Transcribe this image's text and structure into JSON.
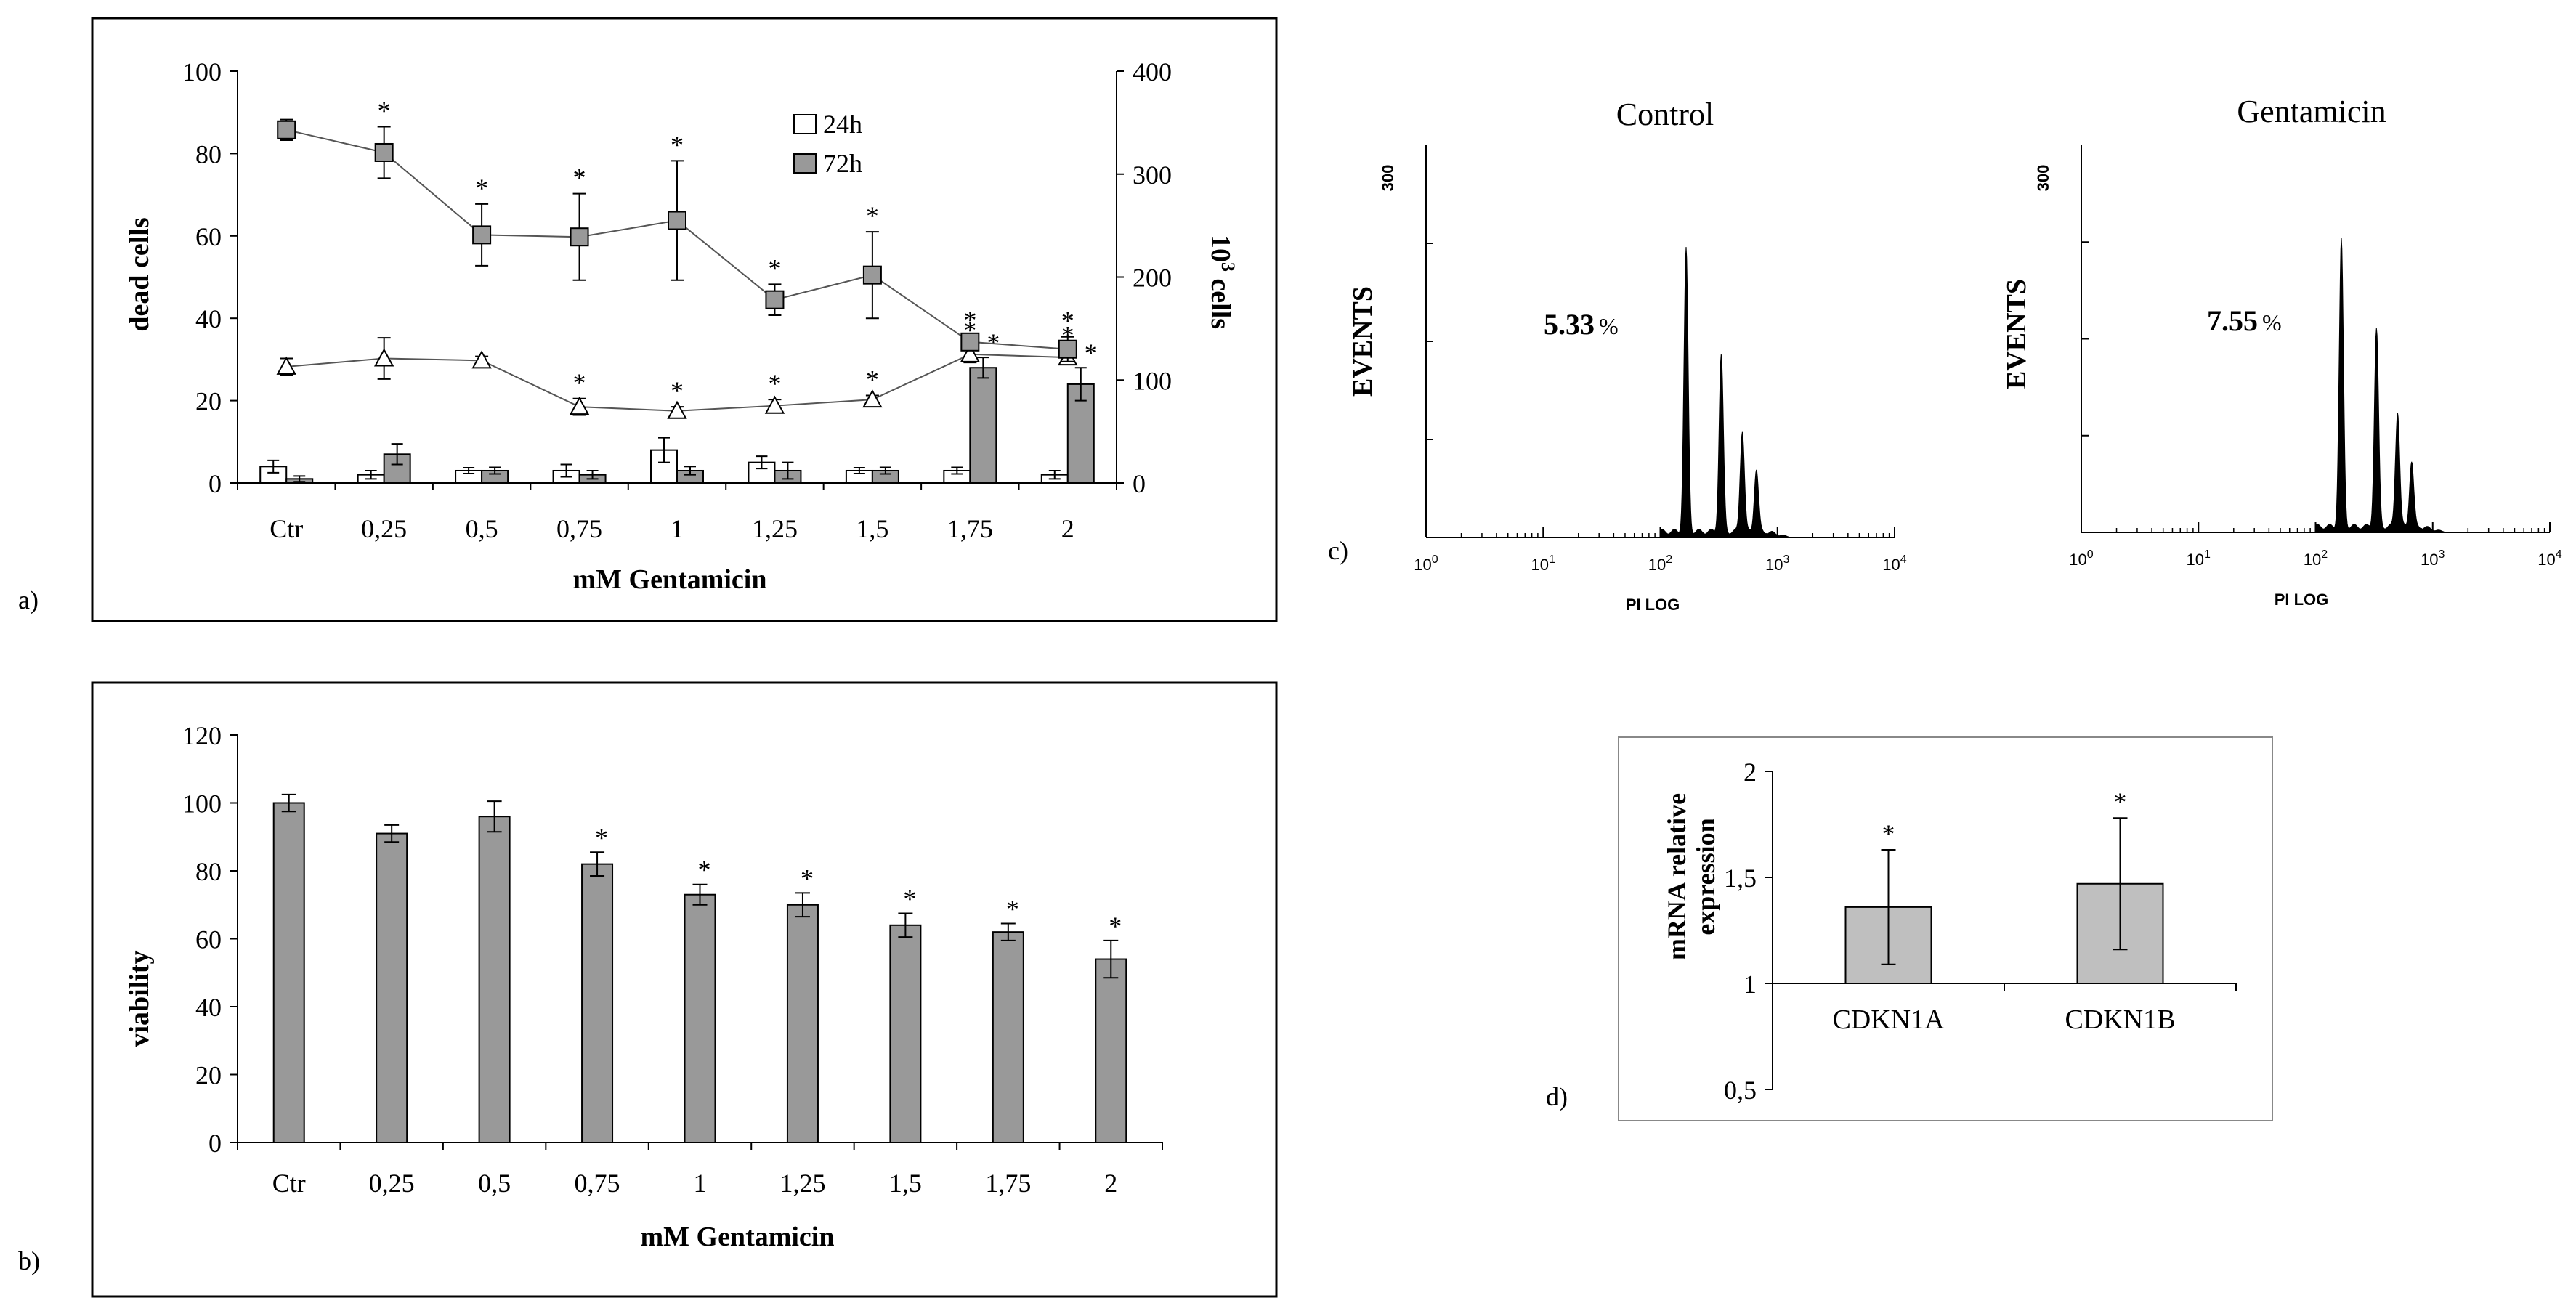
{
  "panel_labels": {
    "a": "a)",
    "b": "b)",
    "c": "c)",
    "d": "d)"
  },
  "chart_data": [
    {
      "id": "a",
      "type": "bar",
      "xlabel": "mM Gentamicin",
      "ylabel": "dead cells",
      "y2label_main": "10",
      "y2label_sup": "3",
      "y2label_rest": " cells",
      "categories": [
        "Ctr",
        "0,25",
        "0,5",
        "0,75",
        "1",
        "1,25",
        "1,5",
        "1,75",
        "2"
      ],
      "ylim": [
        0,
        100
      ],
      "yticks": [
        0,
        20,
        40,
        60,
        80,
        100
      ],
      "y2lim": [
        0,
        400
      ],
      "y2ticks": [
        0,
        100,
        200,
        300,
        400
      ],
      "legend": [
        "24h",
        "72h"
      ],
      "bar_series": [
        {
          "name": "24h",
          "values": [
            4,
            2,
            3,
            3,
            8,
            5,
            3,
            3,
            2
          ],
          "errors": [
            1.5,
            1,
            0.7,
            1.5,
            3,
            1.5,
            0.7,
            0.8,
            1
          ],
          "sig": [
            false,
            false,
            false,
            false,
            false,
            false,
            false,
            false,
            false
          ]
        },
        {
          "name": "72h",
          "values": [
            1,
            7,
            3,
            2,
            3,
            3,
            3,
            28,
            24
          ],
          "errors": [
            0.7,
            2.5,
            0.8,
            1,
            1,
            2,
            0.8,
            2.5,
            4
          ],
          "sig": [
            false,
            false,
            false,
            false,
            false,
            false,
            false,
            true,
            true
          ]
        }
      ],
      "line_series": [
        {
          "name": "24h",
          "marker": "triangle",
          "values": [
            113,
            121,
            119,
            74,
            70,
            75,
            81,
            125,
            122
          ],
          "errors": [
            8,
            20,
            4,
            8,
            4,
            6,
            4,
            8,
            6
          ],
          "sig": [
            false,
            false,
            false,
            true,
            true,
            true,
            true,
            true,
            true
          ]
        },
        {
          "name": "72h",
          "marker": "square",
          "values": [
            343,
            321,
            241,
            239,
            255,
            178,
            202,
            137,
            130
          ],
          "errors": [
            10,
            25,
            30,
            42,
            58,
            15,
            42,
            6,
            12
          ],
          "sig": [
            false,
            true,
            true,
            true,
            true,
            true,
            true,
            true,
            true
          ]
        }
      ]
    },
    {
      "id": "b",
      "type": "bar",
      "xlabel": "mM Gentamicin",
      "ylabel": "viability",
      "categories": [
        "Ctr",
        "0,25",
        "0,5",
        "0,75",
        "1",
        "1,25",
        "1,5",
        "1,75",
        "2"
      ],
      "ylim": [
        0,
        120
      ],
      "yticks": [
        0,
        20,
        40,
        60,
        80,
        100,
        120
      ],
      "values": [
        100,
        91,
        96,
        82,
        73,
        70,
        64,
        62,
        54
      ],
      "errors": [
        2.5,
        2.5,
        4.5,
        3.5,
        3,
        3.5,
        3.5,
        2.5,
        5.5
      ],
      "sig": [
        false,
        false,
        false,
        true,
        true,
        true,
        true,
        true,
        true
      ]
    },
    {
      "id": "c",
      "type": "histogram",
      "xlabel": "PI LOG",
      "ylabel": "EVENTS",
      "ymax_label": "300",
      "xtick_labels": [
        "10",
        "10",
        "10",
        "10",
        "10"
      ],
      "xtick_exponents": [
        "0",
        "1",
        "2",
        "3",
        "4"
      ],
      "panels": [
        {
          "title": "Control",
          "value_label": "5.33",
          "unit": "%",
          "peaks": [
            {
              "log_x": 2.22,
              "height": 0.72
            },
            {
              "log_x": 2.52,
              "height": 0.45
            },
            {
              "log_x": 2.7,
              "height": 0.26
            },
            {
              "log_x": 2.82,
              "height": 0.16
            }
          ]
        },
        {
          "title": "Gentamicin",
          "value_label": "7.55",
          "unit": "%",
          "peaks": [
            {
              "log_x": 2.22,
              "height": 0.74
            },
            {
              "log_x": 2.52,
              "height": 0.51
            },
            {
              "log_x": 2.7,
              "height": 0.3
            },
            {
              "log_x": 2.82,
              "height": 0.17
            }
          ]
        }
      ]
    },
    {
      "id": "d",
      "type": "bar",
      "ylabel_line1": "mRNA relative",
      "ylabel_line2": "expression",
      "categories": [
        "CDKN1A",
        "CDKN1B"
      ],
      "ylim": [
        0.5,
        2
      ],
      "yticks": [
        0.5,
        1,
        1.5,
        2
      ],
      "ytick_labels": [
        "0,5",
        "1",
        "1,5",
        "2"
      ],
      "baseline": 1,
      "values": [
        1.36,
        1.47
      ],
      "errors": [
        0.27,
        0.31
      ],
      "sig": [
        true,
        true
      ]
    }
  ]
}
